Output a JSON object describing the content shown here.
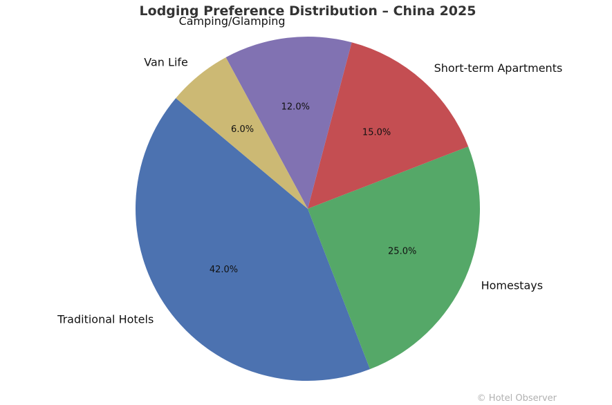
{
  "chart_data": {
    "type": "pie",
    "title": "Lodging Preference Distribution – China 2025",
    "slices": [
      {
        "label": "Traditional Hotels",
        "value": 42.0,
        "pct_label": "42.0%",
        "color": "#4c72b0"
      },
      {
        "label": "Homestays",
        "value": 25.0,
        "pct_label": "25.0%",
        "color": "#55a868"
      },
      {
        "label": "Short-term Apartments",
        "value": 15.0,
        "pct_label": "15.0%",
        "color": "#c44e52"
      },
      {
        "label": "Camping/Glamping",
        "value": 12.0,
        "pct_label": "12.0%",
        "color": "#8172b2"
      },
      {
        "label": "Van Life",
        "value": 6.0,
        "pct_label": "6.0%",
        "color": "#ccb974"
      }
    ],
    "start_angle_deg": 140,
    "direction": "counterclockwise",
    "legend": "none"
  },
  "watermark": "© Hotel Observer"
}
